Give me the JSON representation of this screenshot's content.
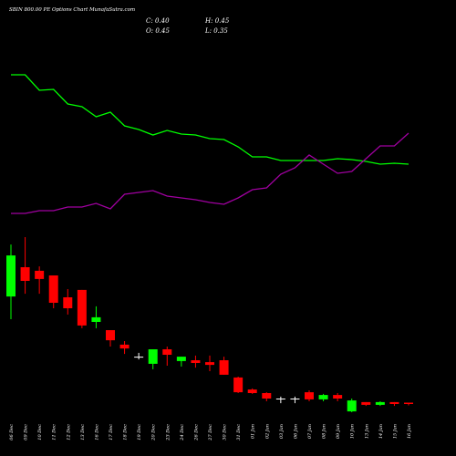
{
  "chart_data": {
    "type": "candlestick",
    "title": "SBIN 800.00 PE Options Chart MunafaSutra.com",
    "ohlc_labels": {
      "close": "C: 0.40",
      "high": "H: 0.45",
      "open": "O: 0.45",
      "low": "L: 0.35"
    },
    "categories": [
      "06 Dec",
      "09 Dec",
      "10 Dec",
      "11 Dec",
      "12 Dec",
      "13 Dec",
      "16 Dec",
      "17 Dec",
      "18 Dec",
      "19 Dec",
      "20 Dec",
      "23 Dec",
      "24 Dec",
      "26 Dec",
      "27 Dec",
      "30 Dec",
      "31 Dec",
      "01 Jan",
      "02 Jan",
      "03 Jan",
      "06 Jan",
      "07 Jan",
      "08 Jan",
      "09 Jan",
      "10 Jan",
      "13 Jan",
      "14 Jan",
      "15 Jan",
      "16 Jan"
    ],
    "open": [
      4.33,
      5.4,
      5.27,
      5.1,
      4.3,
      4.57,
      3.4,
      3.1,
      2.57,
      2.13,
      1.87,
      2.4,
      1.97,
      2.0,
      1.93,
      2.0,
      1.37,
      0.93,
      0.8,
      0.6,
      0.6,
      0.83,
      0.57,
      0.73,
      0.13,
      0.47,
      0.37,
      0.47,
      0.45
    ],
    "high": [
      6.23,
      6.5,
      5.43,
      5.1,
      4.6,
      4.57,
      3.97,
      3.1,
      2.7,
      2.27,
      2.4,
      2.5,
      2.13,
      2.17,
      2.17,
      2.13,
      1.4,
      0.97,
      0.83,
      0.67,
      0.67,
      0.9,
      0.77,
      0.8,
      0.6,
      0.47,
      0.5,
      0.47,
      0.45
    ],
    "low": [
      3.5,
      4.43,
      4.43,
      3.9,
      3.67,
      3.17,
      3.17,
      2.5,
      2.23,
      2.03,
      1.67,
      1.8,
      1.77,
      1.73,
      1.6,
      1.47,
      0.8,
      0.77,
      0.5,
      0.43,
      0.43,
      0.5,
      0.5,
      0.5,
      0.1,
      0.33,
      0.33,
      0.33,
      0.35
    ],
    "close": [
      5.83,
      4.9,
      4.97,
      4.1,
      3.9,
      3.27,
      3.57,
      2.73,
      2.43,
      2.13,
      2.4,
      2.2,
      2.13,
      1.9,
      1.83,
      1.47,
      0.83,
      0.8,
      0.6,
      0.6,
      0.6,
      0.57,
      0.73,
      0.6,
      0.53,
      0.37,
      0.47,
      0.4,
      0.4
    ],
    "up_color": "#00ff00",
    "down_color": "#ff0000",
    "flat_color": "#ffffff",
    "ylim": [
      0,
      6.5
    ],
    "lines": [
      {
        "color": "#00ff00",
        "values": [
          178,
          178,
          161,
          162,
          146,
          143,
          132,
          137,
          122,
          118,
          112,
          117,
          113,
          112,
          108,
          107,
          99,
          88,
          88,
          84,
          84,
          84,
          84,
          86,
          85,
          83,
          80,
          81,
          80
        ]
      },
      {
        "color": "#a000a0",
        "values": [
          26,
          26,
          29,
          29,
          33,
          33,
          37,
          31,
          47,
          49,
          51,
          45,
          43,
          41,
          38,
          36,
          43,
          52,
          54,
          69,
          76,
          90,
          80,
          70,
          72,
          86,
          100,
          100,
          114
        ]
      }
    ],
    "lines_ylim": [
      0,
      200
    ]
  }
}
